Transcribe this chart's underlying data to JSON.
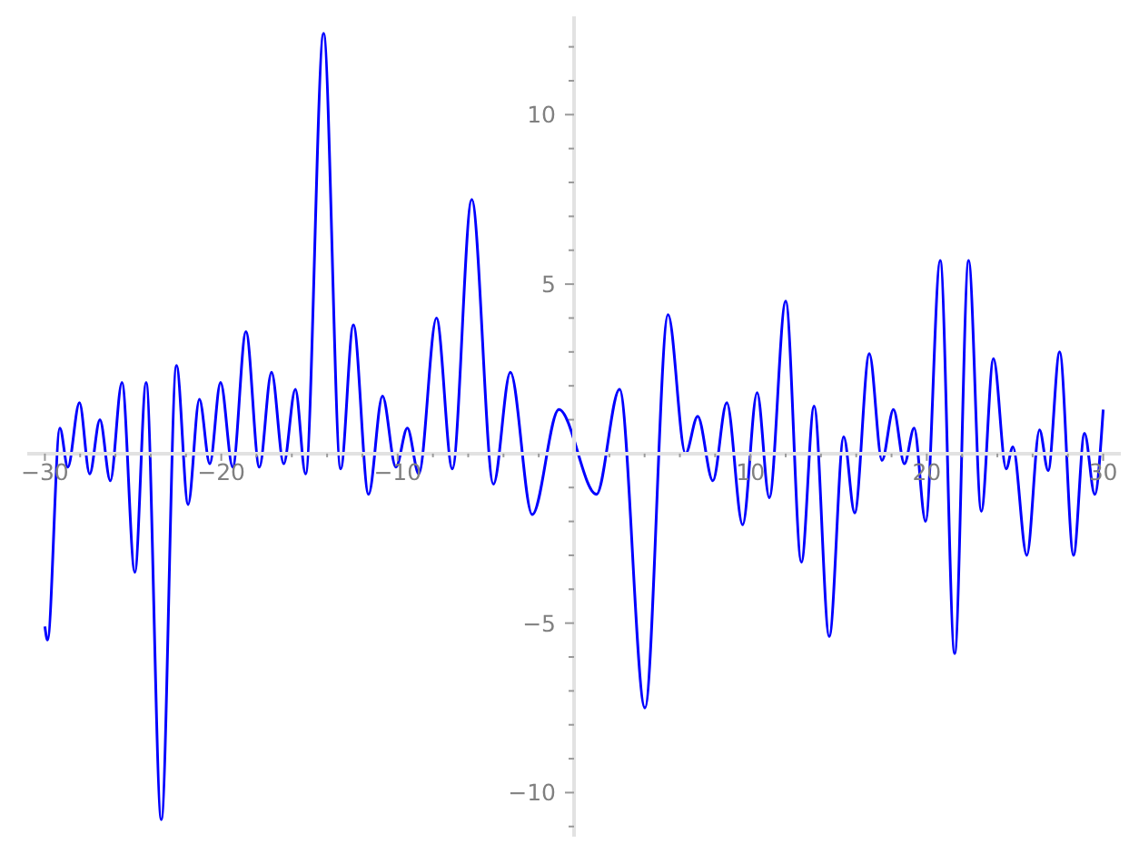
{
  "chart_data": {
    "type": "line",
    "marker": "none",
    "line_style": "solid",
    "x": [
      -30,
      -29.85,
      -29.15,
      -28.7,
      -28.04,
      -27.46,
      -26.88,
      -26.29,
      -25.63,
      -24.9,
      -24.26,
      -23.4,
      -22.54,
      -21.88,
      -21.24,
      -20.65,
      -20.04,
      -19.35,
      -18.6,
      -17.84,
      -17.15,
      -16.46,
      -15.8,
      -15.22,
      -14.2,
      -13.23,
      -12.51,
      -11.65,
      -10.86,
      -10.1,
      -9.45,
      -8.8,
      -7.8,
      -6.9,
      -5.8,
      -4.57,
      -3.61,
      -2.37,
      -0.86,
      1.27,
      2.58,
      4.02,
      5.33,
      6.32,
      7.01,
      7.87,
      8.66,
      9.56,
      10.38,
      11.07,
      12.0,
      12.89,
      13.61,
      14.47,
      15.29,
      15.91,
      16.74,
      17.46,
      18.11,
      18.73,
      19.28,
      19.93,
      20.76,
      21.58,
      22.37,
      23.09,
      23.78,
      24.5,
      24.88,
      25.67,
      26.39,
      26.88,
      27.53,
      28.32,
      28.94,
      29.52,
      30
    ],
    "series": [
      {
        "color": "#0000ff",
        "values": [
          -5.1,
          -5.5,
          0.75,
          -0.4,
          1.5,
          -0.6,
          1.0,
          -0.8,
          2.1,
          -3.5,
          2.1,
          -10.8,
          2.6,
          -1.5,
          1.6,
          -0.3,
          2.1,
          -0.4,
          3.6,
          -0.4,
          2.4,
          -0.3,
          1.9,
          -0.6,
          12.4,
          -0.45,
          3.8,
          -1.2,
          1.7,
          -0.4,
          0.75,
          -0.6,
          4.0,
          -0.45,
          7.5,
          -0.9,
          2.4,
          -1.8,
          1.3,
          -1.2,
          1.9,
          -7.5,
          4.1,
          0.0,
          1.1,
          -0.8,
          1.5,
          -2.1,
          1.8,
          -1.3,
          4.5,
          -3.2,
          1.4,
          -5.4,
          0.5,
          -1.75,
          2.95,
          -0.2,
          1.3,
          -0.3,
          0.75,
          -2.0,
          5.7,
          -5.9,
          5.7,
          -1.7,
          2.8,
          -0.45,
          0.2,
          -3.0,
          0.7,
          -0.5,
          3.0,
          -3.0,
          0.6,
          -1.2,
          1.3
        ]
      }
    ],
    "xlim": [
      -31,
      31
    ],
    "ylim": [
      -11.3,
      12.9
    ],
    "xticks": [
      {
        "value": -30,
        "label": "−30"
      },
      {
        "value": -28,
        "label": null
      },
      {
        "value": -26,
        "label": null
      },
      {
        "value": -24,
        "label": null
      },
      {
        "value": -22,
        "label": null
      },
      {
        "value": -20,
        "label": "−20"
      },
      {
        "value": -18,
        "label": null
      },
      {
        "value": -16,
        "label": null
      },
      {
        "value": -14,
        "label": null
      },
      {
        "value": -12,
        "label": null
      },
      {
        "value": -10,
        "label": "−10"
      },
      {
        "value": -8,
        "label": null
      },
      {
        "value": -6,
        "label": null
      },
      {
        "value": -4,
        "label": null
      },
      {
        "value": -2,
        "label": null
      },
      {
        "value": 2,
        "label": null
      },
      {
        "value": 4,
        "label": null
      },
      {
        "value": 6,
        "label": null
      },
      {
        "value": 8,
        "label": null
      },
      10,
      {
        "value": 12,
        "label": null
      },
      {
        "value": 14,
        "label": null
      },
      {
        "value": 16,
        "label": null
      },
      {
        "value": 18,
        "label": null
      },
      20,
      {
        "value": 22,
        "label": null
      },
      {
        "value": 24,
        "label": null
      },
      {
        "value": 26,
        "label": null
      },
      {
        "value": 28,
        "label": null
      },
      30
    ],
    "yticks": [
      {
        "value": -11,
        "label": null
      },
      {
        "value": -10,
        "label": "−10"
      },
      {
        "value": -9,
        "label": null
      },
      {
        "value": -8,
        "label": null
      },
      {
        "value": -7,
        "label": null
      },
      {
        "value": -6,
        "label": null
      },
      {
        "value": -5,
        "label": "−5"
      },
      {
        "value": -4,
        "label": null
      },
      {
        "value": -3,
        "label": null
      },
      {
        "value": -2,
        "label": null
      },
      {
        "value": -1,
        "label": null
      },
      {
        "value": 1,
        "label": null
      },
      {
        "value": 2,
        "label": null
      },
      {
        "value": 3,
        "label": null
      },
      {
        "value": 4,
        "label": null
      },
      5,
      {
        "value": 6,
        "label": null
      },
      {
        "value": 7,
        "label": null
      },
      {
        "value": 8,
        "label": null
      },
      {
        "value": 9,
        "label": null
      },
      10,
      {
        "value": 11,
        "label": null
      },
      {
        "value": 12,
        "label": null
      }
    ]
  }
}
